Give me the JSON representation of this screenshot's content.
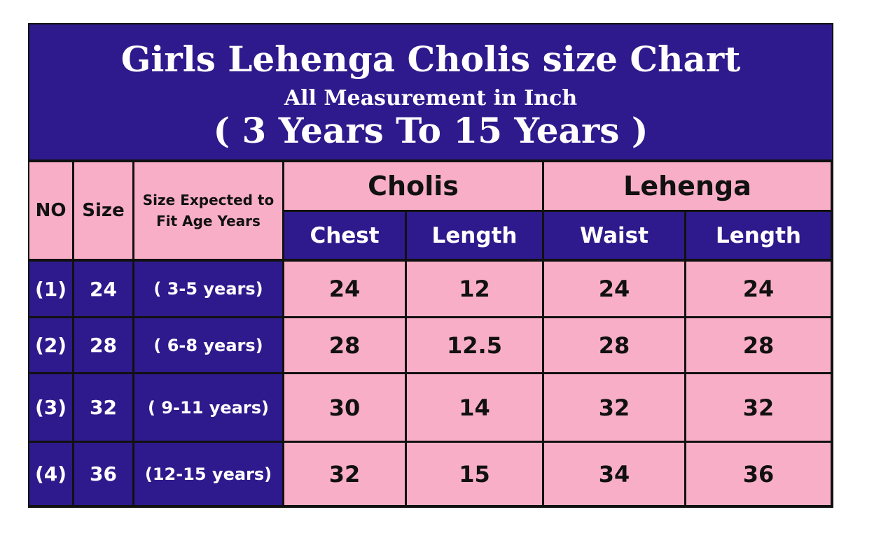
{
  "title": "Girls Lehenga Cholis size Chart",
  "subtitle": "All Measurement in Inch",
  "range": "( 3 Years To 15 Years )",
  "colors": {
    "header_bg": "#2e1a8c",
    "cell_pink": "#f9aec8",
    "border": "#111111"
  },
  "headers": {
    "no": "NO",
    "size": "Size",
    "age": "Size Expected to Fit Age Years",
    "cholis": "Cholis",
    "lehenga": "Lehenga",
    "chest": "Chest",
    "choli_length": "Length",
    "waist": "Waist",
    "lehenga_length": "Length"
  },
  "rows": [
    {
      "no": "(1)",
      "size": "24",
      "age": "( 3-5 years)",
      "chest": "24",
      "choli_length": "12",
      "waist": "24",
      "lehenga_length": "24"
    },
    {
      "no": "(2)",
      "size": "28",
      "age": "( 6-8 years)",
      "chest": "28",
      "choli_length": "12.5",
      "waist": "28",
      "lehenga_length": "28"
    },
    {
      "no": "(3)",
      "size": "32",
      "age": "( 9-11 years)",
      "chest": "30",
      "choli_length": "14",
      "waist": "32",
      "lehenga_length": "32"
    },
    {
      "no": "(4)",
      "size": "36",
      "age": "(12-15 years)",
      "chest": "32",
      "choli_length": "15",
      "waist": "34",
      "lehenga_length": "36"
    }
  ]
}
